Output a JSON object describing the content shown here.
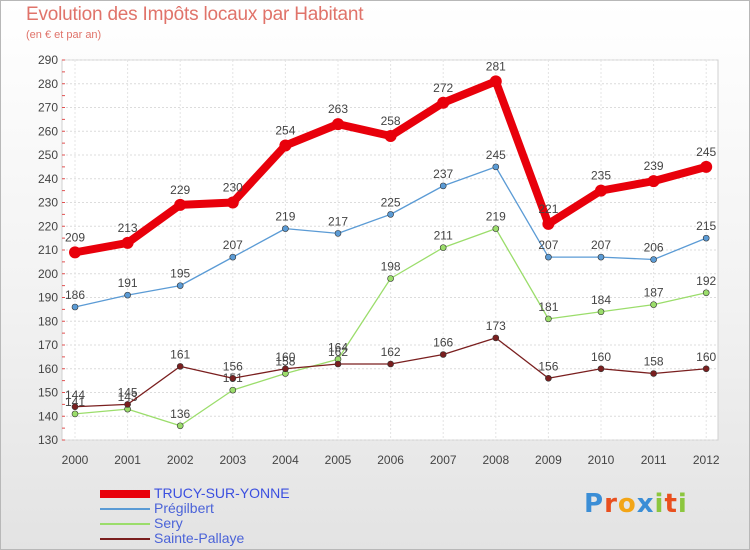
{
  "title": "Evolution des Impôts locaux par Habitant",
  "subtitle": "(en € et par an)",
  "logo": {
    "text": "Proxiti",
    "letters": [
      "P",
      "r",
      "o",
      "x",
      "i",
      "t",
      "i"
    ]
  },
  "chart_data": {
    "type": "line",
    "title": "Evolution des Impôts locaux par Habitant",
    "subtitle": "(en € et par an)",
    "xlabel": "",
    "ylabel": "",
    "categories": [
      "2000",
      "2001",
      "2002",
      "2003",
      "2004",
      "2005",
      "2006",
      "2007",
      "2008",
      "2009",
      "2010",
      "2011",
      "2012"
    ],
    "ylim": [
      130,
      290
    ],
    "yticks": [
      130,
      140,
      150,
      160,
      170,
      180,
      190,
      200,
      210,
      220,
      230,
      240,
      250,
      260,
      270,
      280,
      290
    ],
    "grid": true,
    "legend_position": "bottom-left",
    "series": [
      {
        "name": "TRUCY-SUR-YONNE",
        "color": "#e8000b",
        "emphasis": true,
        "values": [
          209,
          213,
          229,
          230,
          254,
          263,
          258,
          272,
          281,
          221,
          235,
          239,
          245
        ]
      },
      {
        "name": "Prégilbert",
        "color": "#5b9bd5",
        "emphasis": false,
        "values": [
          186,
          191,
          195,
          207,
          219,
          217,
          225,
          237,
          245,
          207,
          207,
          206,
          215
        ]
      },
      {
        "name": "Sery",
        "color": "#9bdd6b",
        "emphasis": false,
        "values": [
          141,
          143,
          136,
          151,
          158,
          164,
          198,
          211,
          219,
          181,
          184,
          187,
          192
        ]
      },
      {
        "name": "Sainte-Pallaye",
        "color": "#7a1f1f",
        "emphasis": false,
        "values": [
          144,
          145,
          161,
          156,
          160,
          162,
          162,
          166,
          173,
          156,
          160,
          158,
          160
        ]
      }
    ]
  }
}
